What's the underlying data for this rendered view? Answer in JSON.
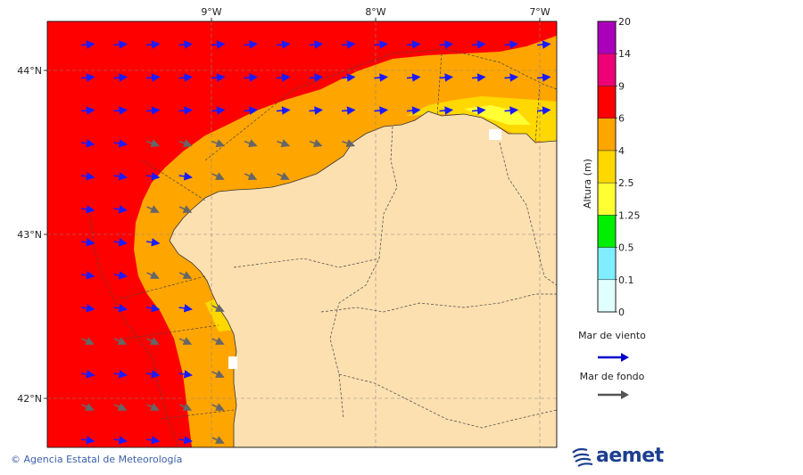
{
  "map": {
    "lon_labels": [
      "9°W",
      "8°W",
      "7°W"
    ],
    "lat_labels": [
      "44°N",
      "43°N",
      "42°N"
    ]
  },
  "colorbar": {
    "title": "Altura (m)",
    "bins": [
      {
        "label": "0",
        "color": "#e0ffff"
      },
      {
        "label": "0.1",
        "color": "#80eeff"
      },
      {
        "label": "0.5",
        "color": "#00ee00"
      },
      {
        "label": "1.25",
        "color": "#ffff33"
      },
      {
        "label": "2.5",
        "color": "#ffd800"
      },
      {
        "label": "4",
        "color": "#ffa500"
      },
      {
        "label": "6",
        "color": "#ff0000"
      },
      {
        "label": "9",
        "color": "#ee0077"
      },
      {
        "label": "14",
        "color": "#aa00bb"
      },
      {
        "label": "20",
        "color": ""
      }
    ]
  },
  "legend": {
    "wind_sea": {
      "label": "Mar de viento",
      "color": "#0000cc"
    },
    "swell": {
      "label": "Mar de fondo",
      "color": "#555555"
    }
  },
  "colors": {
    "land": "#fde0b0",
    "sea_6_9": "#ff0000",
    "sea_4_6": "#ffa500",
    "sea_2_5_4": "#ffd800",
    "sea_1_25_2_5": "#ffff33"
  },
  "footer": {
    "credit": "© Agencia Estatal de Meteorología",
    "logo": "aemet"
  }
}
